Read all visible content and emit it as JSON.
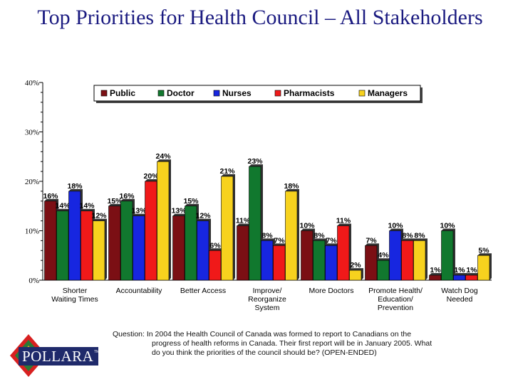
{
  "title": "Top Priorities for Health Council – All Stakeholders",
  "question": {
    "line1": "Question: In 2004 the Health Council of Canada was formed to report to Canadians on the",
    "line2": "progress of health reforms in Canada. Their first report will be in January 2005. What",
    "line3": "do you think the priorities of the council should be? (OPEN-ENDED)"
  },
  "logo": {
    "text": "POLLARA",
    "tm": "TM"
  },
  "chart_data": {
    "type": "bar",
    "title": "Top Priorities for Health Council – All Stakeholders",
    "xlabel": "",
    "ylabel": "",
    "ylim": [
      0,
      40
    ],
    "yticks": [
      "0%",
      "10%",
      "20%",
      "30%",
      "40%"
    ],
    "grid": false,
    "legend_position": "top",
    "categories": [
      [
        "Shorter",
        "Waiting Times"
      ],
      [
        "Accountability"
      ],
      [
        "Better Access"
      ],
      [
        "Improve/",
        "Reorganize",
        "System"
      ],
      [
        "More Doctors"
      ],
      [
        "Promote Health/",
        "Education/",
        "Prevention"
      ],
      [
        "Watch Dog",
        "Needed"
      ]
    ],
    "series": [
      {
        "name": "Public",
        "color": "#7b0f14",
        "values": [
          16,
          15,
          13,
          11,
          10,
          7,
          1
        ]
      },
      {
        "name": "Doctor",
        "color": "#11782e",
        "values": [
          14,
          16,
          15,
          23,
          8,
          4,
          10
        ]
      },
      {
        "name": "Nurses",
        "color": "#1726e0",
        "values": [
          18,
          13,
          12,
          8,
          7,
          10,
          1
        ]
      },
      {
        "name": "Pharmacists",
        "color": "#f01919",
        "values": [
          14,
          20,
          6,
          7,
          11,
          8,
          1
        ]
      },
      {
        "name": "Managers",
        "color": "#f7d21e",
        "values": [
          12,
          24,
          21,
          18,
          2,
          8,
          5
        ]
      }
    ],
    "value_suffix": "%"
  }
}
